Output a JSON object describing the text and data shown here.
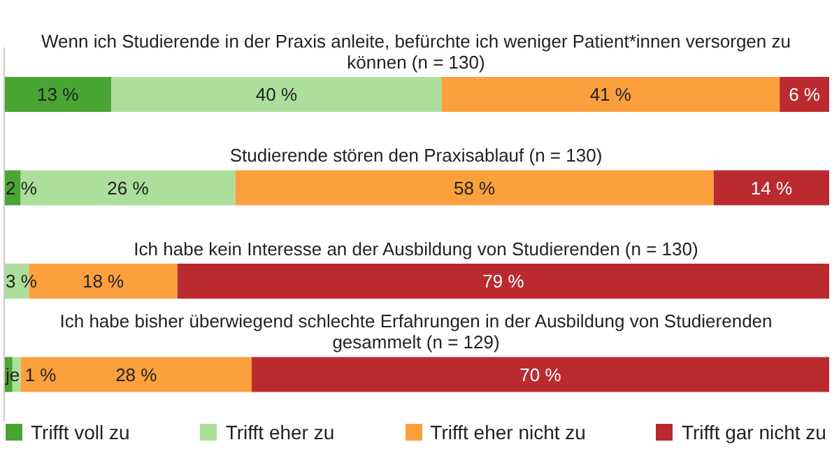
{
  "chart_data": {
    "type": "bar",
    "orientation": "horizontal",
    "stacked": true,
    "categories": [
      "Wenn ich Studierende in der Praxis anleite, befürchte ich weniger Patient*innen versorgen zu können (n = 130)",
      "Studierende stören den Praxisablauf (n = 130)",
      "Ich habe kein Interesse an der Ausbildung von Studierenden (n = 130)",
      "Ich habe bisher überwiegend schlechte Erfahrungen in der Ausbildung von Studierenden gesammelt (n = 129)"
    ],
    "series": [
      {
        "name": "Trifft voll zu",
        "color": "#4aa532",
        "values": [
          13,
          2,
          0,
          1
        ],
        "value_labels": [
          "13 %",
          "2 %",
          null,
          "je 1 %"
        ]
      },
      {
        "name": "Trifft eher zu",
        "color": "#acdf9c",
        "values": [
          40,
          26,
          3,
          1
        ],
        "value_labels": [
          "40 %",
          "26 %",
          "3 %",
          null
        ]
      },
      {
        "name": "Trifft eher nicht zu",
        "color": "#fba03c",
        "values": [
          41,
          58,
          18,
          28
        ],
        "value_labels": [
          "41 %",
          "58 %",
          "18 %",
          "28 %"
        ]
      },
      {
        "name": "Trifft gar nicht zu",
        "color": "#bb2a2f",
        "values": [
          6,
          14,
          79,
          70
        ],
        "value_labels": [
          "6 %",
          "14 %",
          "79 %",
          "70 %"
        ]
      }
    ],
    "xlim": [
      0,
      100
    ],
    "tick_labels": false,
    "grid": false,
    "legend": "bottom"
  }
}
